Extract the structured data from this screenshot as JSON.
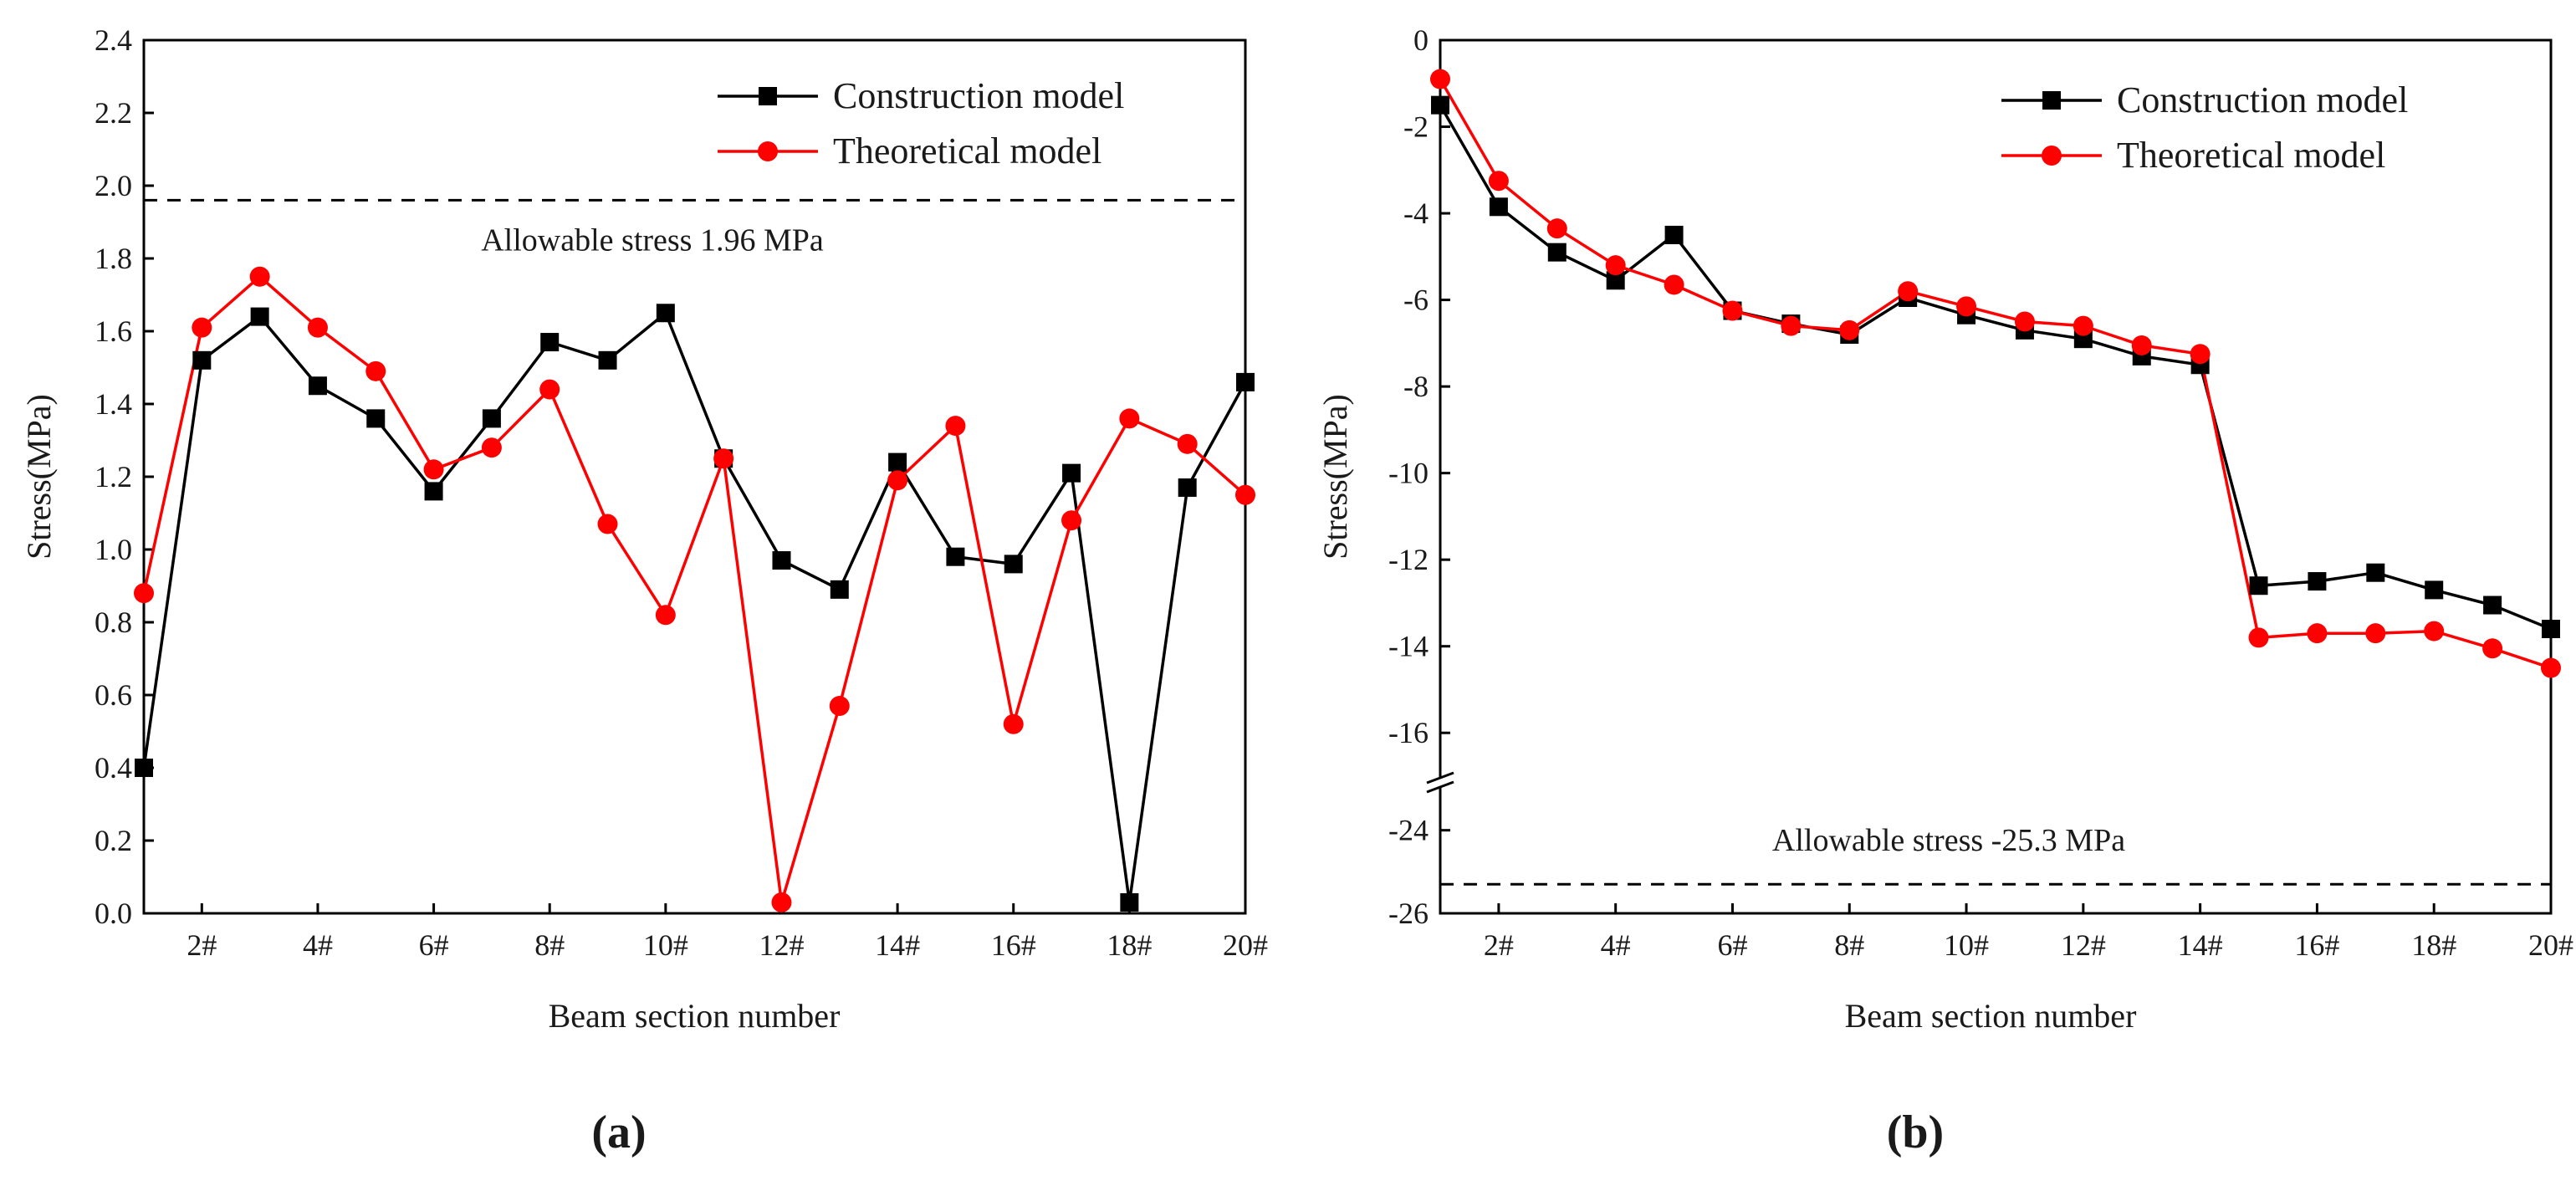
{
  "chart_data": [
    {
      "type": "line",
      "panel_label": "(a)",
      "xlabel": "Beam section number",
      "ylabel": "Stress(MPa)",
      "x": [
        1,
        2,
        3,
        4,
        5,
        6,
        7,
        8,
        9,
        10,
        11,
        12,
        13,
        14,
        15,
        16,
        17,
        18,
        19,
        20
      ],
      "xtick_values": [
        2,
        4,
        6,
        8,
        10,
        12,
        14,
        16,
        18,
        20
      ],
      "xtick_labels": [
        "2#",
        "4#",
        "6#",
        "8#",
        "10#",
        "12#",
        "14#",
        "16#",
        "18#",
        "20#"
      ],
      "ylim": [
        0,
        2.4
      ],
      "ytick_values": [
        0.0,
        0.2,
        0.4,
        0.6,
        0.8,
        1.0,
        1.2,
        1.4,
        1.6,
        1.8,
        2.0,
        2.2,
        2.4
      ],
      "ytick_labels": [
        "0.0",
        "0.2",
        "0.4",
        "0.6",
        "0.8",
        "1.0",
        "1.2",
        "1.4",
        "1.6",
        "1.8",
        "2.0",
        "2.2",
        "2.4"
      ],
      "series": [
        {
          "name": "Construction model",
          "color": "#000000",
          "marker": "square",
          "values": [
            0.4,
            1.52,
            1.64,
            1.45,
            1.36,
            1.16,
            1.36,
            1.57,
            1.52,
            1.65,
            1.25,
            0.97,
            0.89,
            1.24,
            0.98,
            0.96,
            1.21,
            0.03,
            1.17,
            1.46
          ]
        },
        {
          "name": "Theoretical model",
          "color": "#ff0000",
          "marker": "circle",
          "values": [
            0.88,
            1.61,
            1.75,
            1.61,
            1.49,
            1.22,
            1.28,
            1.44,
            1.07,
            0.82,
            1.25,
            0.03,
            0.57,
            1.19,
            1.34,
            0.52,
            1.08,
            1.36,
            1.29,
            1.15
          ]
        }
      ],
      "reference_line": {
        "value": 1.96,
        "label": "Allowable stress 1.96 MPa",
        "style": "dashed"
      },
      "legend_position": "top-right"
    },
    {
      "type": "line",
      "panel_label": "(b)",
      "xlabel": "Beam section number",
      "ylabel": "Stress(MPa)",
      "x": [
        1,
        2,
        3,
        4,
        5,
        6,
        7,
        8,
        9,
        10,
        11,
        12,
        13,
        14,
        15,
        16,
        17,
        18,
        19,
        20
      ],
      "xtick_values": [
        2,
        4,
        6,
        8,
        10,
        12,
        14,
        16,
        18,
        20
      ],
      "xtick_labels": [
        "2#",
        "4#",
        "6#",
        "8#",
        "10#",
        "12#",
        "14#",
        "16#",
        "18#",
        "20#"
      ],
      "axis_break": {
        "upper_range": [
          -17,
          0
        ],
        "lower_range": [
          -26,
          -23
        ]
      },
      "ytick_values": [
        0,
        -2,
        -4,
        -6,
        -8,
        -10,
        -12,
        -14,
        -16,
        -24,
        -26
      ],
      "ytick_labels": [
        "0",
        "-2",
        "-4",
        "-6",
        "-8",
        "-10",
        "-12",
        "-14",
        "-16",
        "-24",
        "-26"
      ],
      "series": [
        {
          "name": "Construction model",
          "color": "#000000",
          "marker": "square",
          "values": [
            -1.5,
            -3.85,
            -4.9,
            -5.55,
            -4.5,
            -6.25,
            -6.55,
            -6.8,
            -5.95,
            -6.35,
            -6.7,
            -6.9,
            -7.3,
            -7.5,
            -12.6,
            -12.5,
            -12.3,
            -12.7,
            -13.05,
            -13.6
          ]
        },
        {
          "name": "Theoretical model",
          "color": "#ff0000",
          "marker": "circle",
          "values": [
            -0.9,
            -3.25,
            -4.35,
            -5.2,
            -5.65,
            -6.25,
            -6.6,
            -6.7,
            -5.8,
            -6.15,
            -6.5,
            -6.6,
            -7.05,
            -7.25,
            -13.8,
            -13.7,
            -13.7,
            -13.65,
            -14.05,
            -14.5
          ]
        }
      ],
      "reference_line": {
        "value": -25.3,
        "label": "Allowable stress -25.3 MPa",
        "style": "dashed"
      },
      "legend_position": "top-right"
    }
  ]
}
